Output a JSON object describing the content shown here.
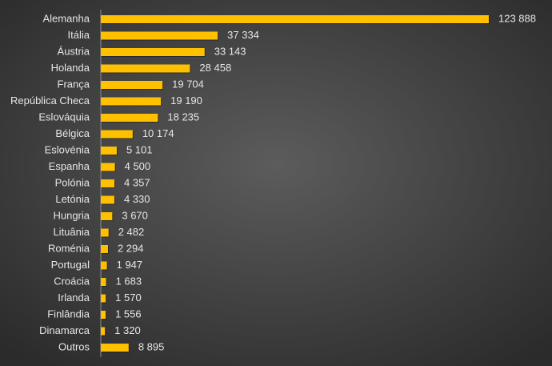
{
  "chart_data": {
    "type": "bar",
    "orientation": "horizontal",
    "color": "#ffc000",
    "categories": [
      "Alemanha",
      "Itália",
      "Áustria",
      "Holanda",
      "França",
      "República Checa",
      "Eslováquia",
      "Bélgica",
      "Eslovénia",
      "Espanha",
      "Polónia",
      "Letónia",
      "Hungria",
      "Lituânia",
      "Roménia",
      "Portugal",
      "Croácia",
      "Irlanda",
      "Finlândia",
      "Dinamarca",
      "Outros"
    ],
    "values": [
      123888,
      37334,
      33143,
      28458,
      19704,
      19190,
      18235,
      10174,
      5101,
      4500,
      4357,
      4330,
      3670,
      2482,
      2294,
      1947,
      1683,
      1570,
      1556,
      1320,
      8895
    ],
    "value_labels": [
      "123 888",
      "37 334",
      "33 143",
      "28 458",
      "19 704",
      "19 190",
      "18 235",
      "10 174",
      "5 101",
      "4 500",
      "4 357",
      "4 330",
      "3 670",
      "2 482",
      "2 294",
      "1 947",
      "1 683",
      "1 570",
      "1 556",
      "1 320",
      "8 895"
    ]
  }
}
